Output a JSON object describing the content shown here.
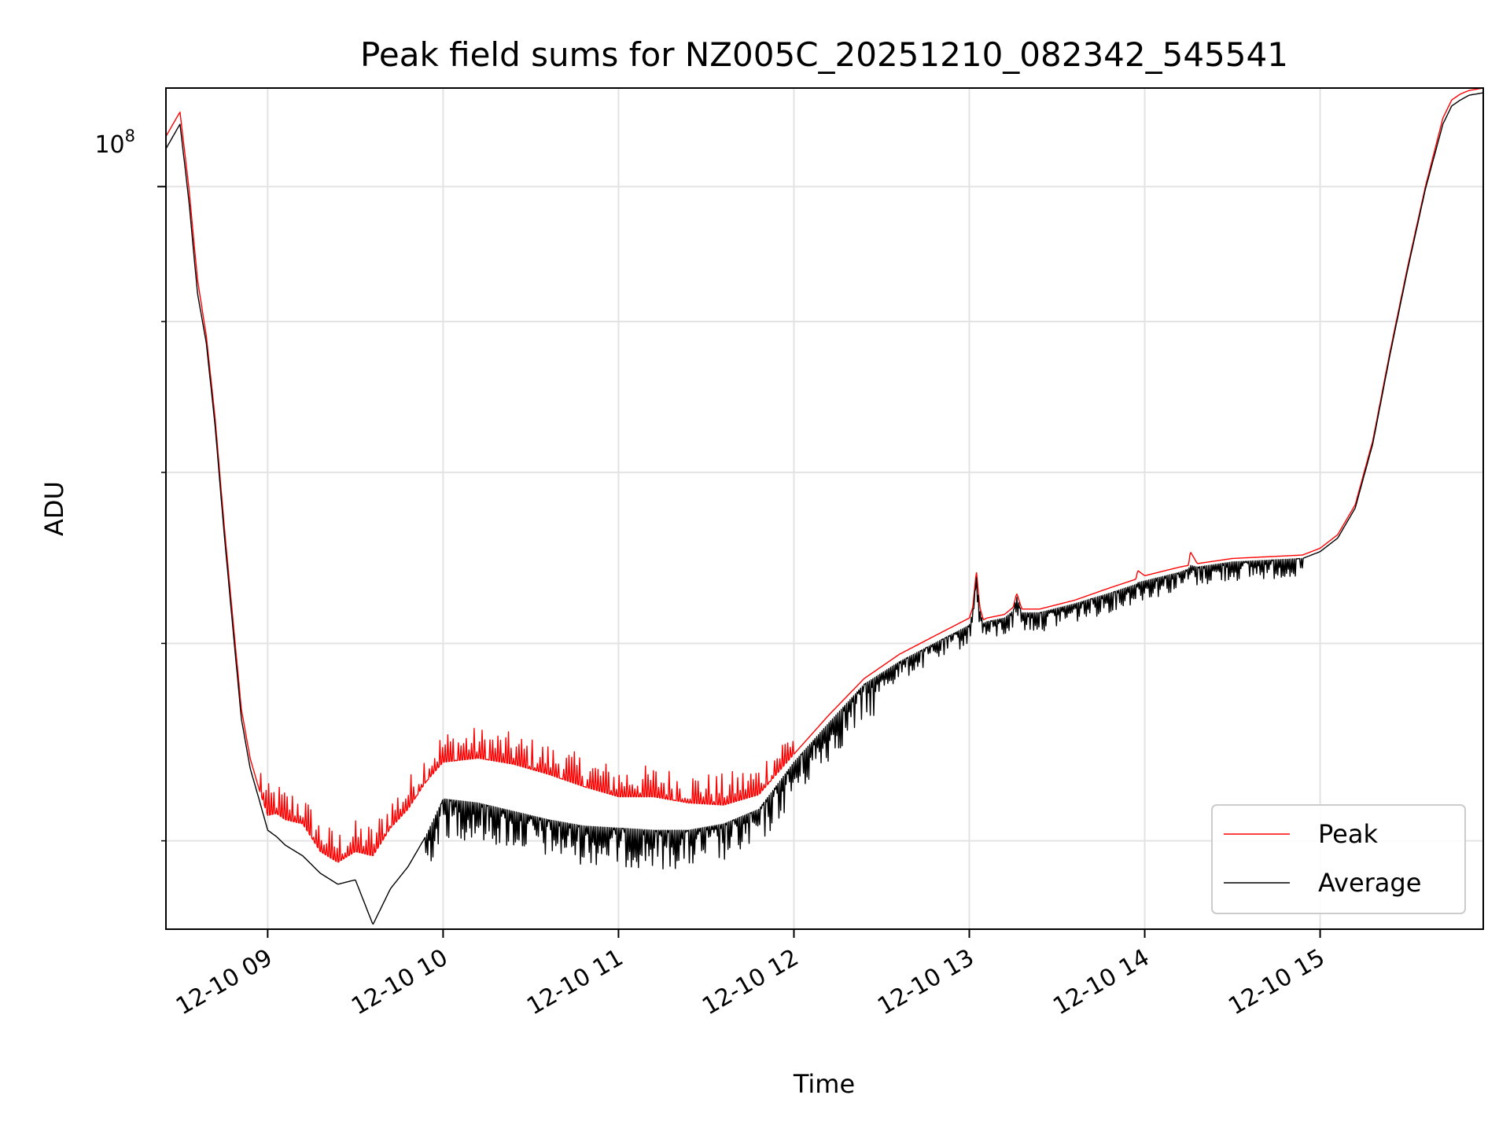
{
  "colors": {
    "peak": "#ff0000",
    "average": "#000000",
    "grid": "#e3e3e3",
    "axis": "#000000",
    "background": "#ffffff"
  },
  "chart_data": {
    "type": "line",
    "title": "Peak field sums for NZ005C_20251210_082342_545541",
    "xlabel": "Time",
    "ylabel": "ADU",
    "yscale": "log",
    "xlim": [
      8.42,
      15.93
    ],
    "ylim": [
      56000000.0,
      108000000.0
    ],
    "x_unit": "hour of day",
    "x_ticks": [
      {
        "value": 9,
        "label": "12-10 09"
      },
      {
        "value": 10,
        "label": "12-10 10"
      },
      {
        "value": 11,
        "label": "12-10 11"
      },
      {
        "value": 12,
        "label": "12-10 12"
      },
      {
        "value": 13,
        "label": "12-10 13"
      },
      {
        "value": 14,
        "label": "12-10 14"
      },
      {
        "value": 15,
        "label": "12-10 15"
      }
    ],
    "y_major_ticks": [
      {
        "value": 100000000,
        "label": "10",
        "exponent": "8"
      }
    ],
    "y_minor_ticks": [
      60000000,
      70000000,
      80000000,
      90000000
    ],
    "grid": true,
    "legend_position": "lower right",
    "series": [
      {
        "name": "Peak",
        "x": [
          8.42,
          8.5,
          8.55,
          8.6,
          8.65,
          8.7,
          8.75,
          8.8,
          8.85,
          8.9,
          8.95,
          9.0,
          9.05,
          9.1,
          9.2,
          9.3,
          9.4,
          9.5,
          9.6,
          9.7,
          9.8,
          9.9,
          10.0,
          10.2,
          10.4,
          10.6,
          10.8,
          11.0,
          11.2,
          11.4,
          11.6,
          11.8,
          12.0,
          12.2,
          12.4,
          12.6,
          12.8,
          13.0,
          13.02,
          13.04,
          13.06,
          13.08,
          13.1,
          13.2,
          13.25,
          13.27,
          13.3,
          13.4,
          13.6,
          13.8,
          13.95,
          13.96,
          14.0,
          14.2,
          14.25,
          14.26,
          14.3,
          14.5,
          14.7,
          14.9,
          15.0,
          15.1,
          15.2,
          15.3,
          15.4,
          15.5,
          15.6,
          15.7,
          15.75,
          15.8,
          15.85,
          15.93
        ],
        "y": [
          104000000.0,
          106000000.0,
          100000000.0,
          93000000.0,
          89000000.0,
          83500000.0,
          77000000.0,
          71500000.0,
          66500000.0,
          64000000.0,
          62500000.0,
          61200000.0,
          61300000.0,
          61000000.0,
          60800000.0,
          59500000.0,
          59000000.0,
          59500000.0,
          59300000.0,
          60600000.0,
          61500000.0,
          62800000.0,
          63800000.0,
          64000000.0,
          63700000.0,
          63200000.0,
          62600000.0,
          62100000.0,
          62100000.0,
          61800000.0,
          61700000.0,
          62200000.0,
          64200000.0,
          66200000.0,
          68100000.0,
          69400000.0,
          70400000.0,
          71400000.0,
          72000000.0,
          74100000.0,
          72000000.0,
          71300000.0,
          71400000.0,
          71600000.0,
          72000000.0,
          72800000.0,
          71900000.0,
          71900000.0,
          72400000.0,
          73100000.0,
          73600000.0,
          74100000.0,
          73800000.0,
          74300000.0,
          74400000.0,
          75200000.0,
          74500000.0,
          74800000.0,
          74900000.0,
          75000000.0,
          75400000.0,
          76200000.0,
          78000000.0,
          82000000.0,
          88000000.0,
          94000000.0,
          100000000.0,
          105500000.0,
          107000000.0,
          107500000.0,
          107800000.0,
          108000000.0
        ],
        "noise": {
          "spike_up_region": [
            8.95,
            12.0
          ],
          "amplitude_fraction": 0.025
        }
      },
      {
        "name": "Average",
        "x": [
          8.42,
          8.5,
          8.55,
          8.6,
          8.65,
          8.7,
          8.75,
          8.8,
          8.85,
          8.9,
          8.95,
          9.0,
          9.05,
          9.1,
          9.2,
          9.3,
          9.4,
          9.5,
          9.6,
          9.7,
          9.8,
          9.9,
          10.0,
          10.2,
          10.4,
          10.6,
          10.8,
          11.0,
          11.2,
          11.4,
          11.6,
          11.8,
          12.0,
          12.2,
          12.4,
          12.6,
          12.8,
          13.0,
          13.02,
          13.04,
          13.06,
          13.08,
          13.1,
          13.2,
          13.25,
          13.27,
          13.3,
          13.4,
          13.6,
          13.8,
          13.95,
          13.96,
          14.0,
          14.2,
          14.25,
          14.26,
          14.3,
          14.5,
          14.7,
          14.9,
          15.0,
          15.1,
          15.2,
          15.3,
          15.4,
          15.5,
          15.6,
          15.7,
          15.75,
          15.8,
          15.85,
          15.93
        ],
        "y": [
          103000000.0,
          105000000.0,
          99000000.0,
          92000000.0,
          88500000.0,
          83000000.0,
          76500000.0,
          71000000.0,
          66000000.0,
          63500000.0,
          62000000.0,
          60500000.0,
          60200000.0,
          59800000.0,
          59300000.0,
          58500000.0,
          58000000.0,
          58200000.0,
          56200000.0,
          57800000.0,
          58800000.0,
          60200000.0,
          62000000.0,
          61800000.0,
          61400000.0,
          61000000.0,
          60700000.0,
          60600000.0,
          60500000.0,
          60500000.0,
          60800000.0,
          61500000.0,
          63800000.0,
          65800000.0,
          67800000.0,
          69000000.0,
          70000000.0,
          71000000.0,
          71800000.0,
          73800000.0,
          71800000.0,
          71100000.0,
          71200000.0,
          71400000.0,
          71800000.0,
          72600000.0,
          71700000.0,
          71700000.0,
          72200000.0,
          72800000.0,
          73300000.0,
          73400000.0,
          73500000.0,
          74000000.0,
          74200000.0,
          74400000.0,
          74300000.0,
          74600000.0,
          74700000.0,
          74800000.0,
          75200000.0,
          76000000.0,
          77800000.0,
          81800000.0,
          87800000.0,
          93800000.0,
          99800000.0,
          105000000.0,
          106500000.0,
          107000000.0,
          107400000.0,
          107600000.0
        ],
        "noise": {
          "spike_down_region": [
            9.9,
            14.9
          ],
          "amplitude_fraction": 0.03
        }
      }
    ]
  }
}
